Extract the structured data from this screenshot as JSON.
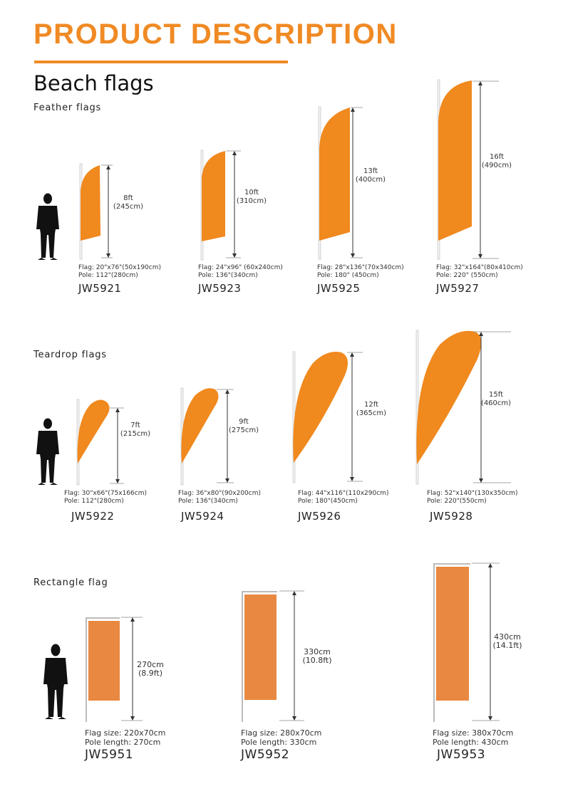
{
  "header": {
    "title": "PRODUCT DESCRIPTION",
    "subtitle": "Beach flags"
  },
  "colors": {
    "accent": "#f08a24",
    "flag_orange": "#f0891e",
    "rect_orange": "#e98840"
  },
  "icons": {
    "person": "person-silhouette-icon"
  },
  "feather": {
    "label": "Feather flags",
    "items": [
      {
        "code": "JW5921",
        "flag": "Flag: 20\"x76\"(50x190cm)",
        "pole": "Pole: 112\"(280cm)",
        "height_ft": "8ft",
        "height_cm": "(245cm)"
      },
      {
        "code": "JW5923",
        "flag": "Flag: 24\"x96\" (60x240cm)",
        "pole": "Pole: 136\"(340cm)",
        "height_ft": "10ft",
        "height_cm": "(310cm)"
      },
      {
        "code": "JW5925",
        "flag": "Flag: 28\"x136\"(70x340cm)",
        "pole": "Pole: 180\" (450cm)",
        "height_ft": "13ft",
        "height_cm": "(400cm)"
      },
      {
        "code": "JW5927",
        "flag": "Flag: 32\"x164\"(80x410cm)",
        "pole": "Pole: 220\" (550cm)",
        "height_ft": "16ft",
        "height_cm": "(490cm)"
      }
    ]
  },
  "teardrop": {
    "label": "Teardrop flags",
    "items": [
      {
        "code": "JW5922",
        "flag": "Flag: 30\"x66\"(75x166cm)",
        "pole": "Pole: 112\"(280cm)",
        "height_ft": "7ft",
        "height_cm": "(215cm)"
      },
      {
        "code": "JW5924",
        "flag": "Flag: 36\"x80\"(90x200cm)",
        "pole": "Pole: 136\"(340cm)",
        "height_ft": "9ft",
        "height_cm": "(275cm)"
      },
      {
        "code": "JW5926",
        "flag": "Flag: 44\"x116\"(110x290cm)",
        "pole": "Pole: 180\"(450cm)",
        "height_ft": "12ft",
        "height_cm": "(365cm)"
      },
      {
        "code": "JW5928",
        "flag": "Flag: 52\"x140\"(130x350cm)",
        "pole": "Pole: 220\"(550cm)",
        "height_ft": "15ft",
        "height_cm": "(460cm)"
      }
    ]
  },
  "rectangle": {
    "label": "Rectangle flag",
    "items": [
      {
        "code": "JW5951",
        "flag": "Flag size: 220x70cm",
        "pole": "Pole length: 270cm",
        "height_cm": "270cm",
        "height_ft": "(8.9ft)"
      },
      {
        "code": "JW5952",
        "flag": "Flag size: 280x70cm",
        "pole": "Pole length: 330cm",
        "height_cm": "330cm",
        "height_ft": "(10.8ft)"
      },
      {
        "code": "JW5953",
        "flag": "Flag size: 380x70cm",
        "pole": "Pole length: 430cm",
        "height_cm": "430cm",
        "height_ft": "(14.1ft)"
      }
    ]
  }
}
